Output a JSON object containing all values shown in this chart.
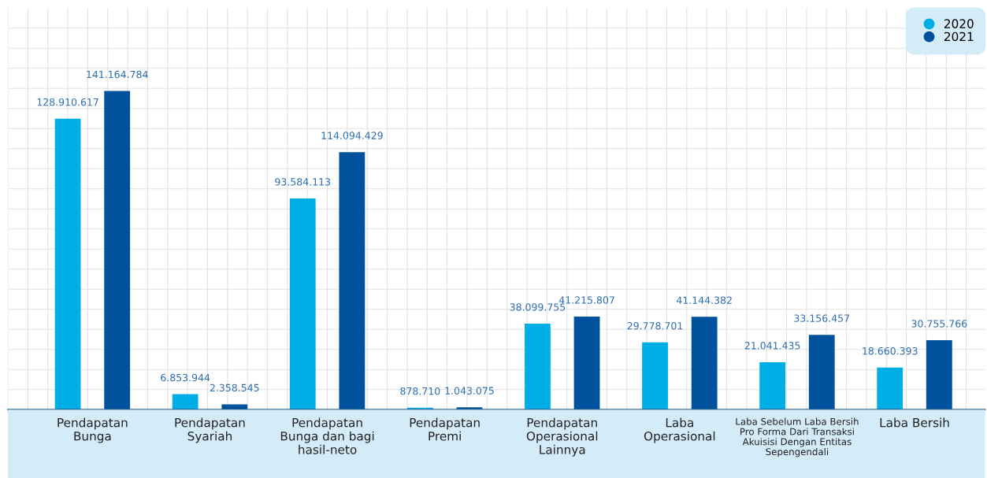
{
  "chart_data": {
    "type": "bar",
    "categories": [
      "Pendapatan\nBunga",
      "Pendapatan\nSyariah",
      "Pendapatan\nBunga dan bagi\nhasil-neto",
      "Pendapatan\nPremi",
      "Pendapatan\nOperasional\nLainnya",
      "Laba\nOperasional",
      "Laba Sebelum Laba Bersih\nPro Forma Dari Transaksi\nAkuisisi Dengan Entitas\nSepengendali",
      "Laba Bersih"
    ],
    "series": [
      {
        "name": "2020",
        "color": "#00aee6",
        "values": [
          128910617,
          6853944,
          93584113,
          878710,
          38099755,
          29778701,
          21041435,
          18660393
        ],
        "value_labels": [
          "128.910.617",
          "6.853.944",
          "93.584.113",
          "878.710",
          "38.099.755",
          "29.778.701",
          "21.041.435",
          "18.660.393"
        ]
      },
      {
        "name": "2021",
        "color": "#00529c",
        "values": [
          141164784,
          2358545,
          114094429,
          1043075,
          41215807,
          41144382,
          33156457,
          30755766
        ],
        "value_labels": [
          "141.164.784",
          "2.358.545",
          "114.094.429",
          "1.043.075",
          "41.215.807",
          "41.144.382",
          "33.156.457",
          "30.755.766"
        ]
      }
    ],
    "grid": true,
    "legend": "top right",
    "tick_labels": "x"
  }
}
